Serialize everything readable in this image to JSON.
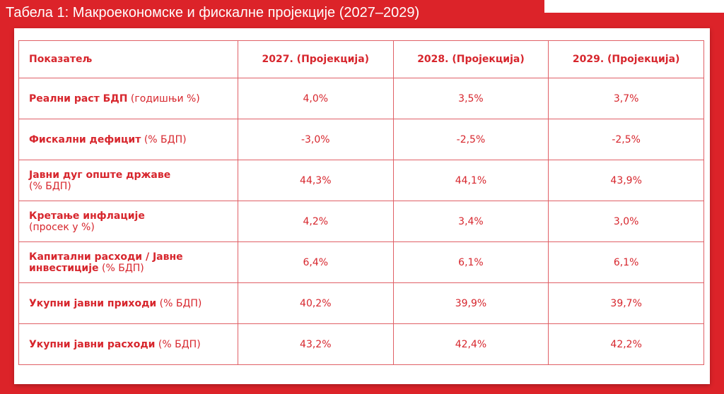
{
  "title": "Табела 1: Макроекономске и фискалне пројекције (2027–2029)",
  "table": {
    "header": [
      "Показатељ",
      "2027. (Пројекција)",
      "2028. (Пројекција)",
      "2029. (Пројекција)"
    ],
    "rows": [
      {
        "label": "Реални раст БДП",
        "note": "(годишњи %)",
        "values": [
          "4,0%",
          "3,5%",
          "3,7%"
        ]
      },
      {
        "label": "Фискални дефицит",
        "note": "(% БДП)",
        "values": [
          "-3,0%",
          "-2,5%",
          "-2,5%"
        ]
      },
      {
        "label": "Јавни дуг опште државе",
        "note": "(% БДП)",
        "values": [
          "44,3%",
          "44,1%",
          "43,9%"
        ]
      },
      {
        "label": "Кретање инфлације",
        "note": "(просек у %)",
        "values": [
          "4,2%",
          "3,4%",
          "3,0%"
        ]
      },
      {
        "label": "Капитални расходи / Јавне инвестиције",
        "note": "(% БДП)",
        "values": [
          "6,4%",
          "6,1%",
          "6,1%"
        ]
      },
      {
        "label": "Укупни јавни приходи",
        "note": "(% БДП)",
        "values": [
          "40,2%",
          "39,9%",
          "39,7%"
        ]
      },
      {
        "label": "Укупни јавни расходи",
        "note": "(% БДП)",
        "values": [
          "43,2%",
          "42,4%",
          "42,2%"
        ]
      }
    ]
  }
}
